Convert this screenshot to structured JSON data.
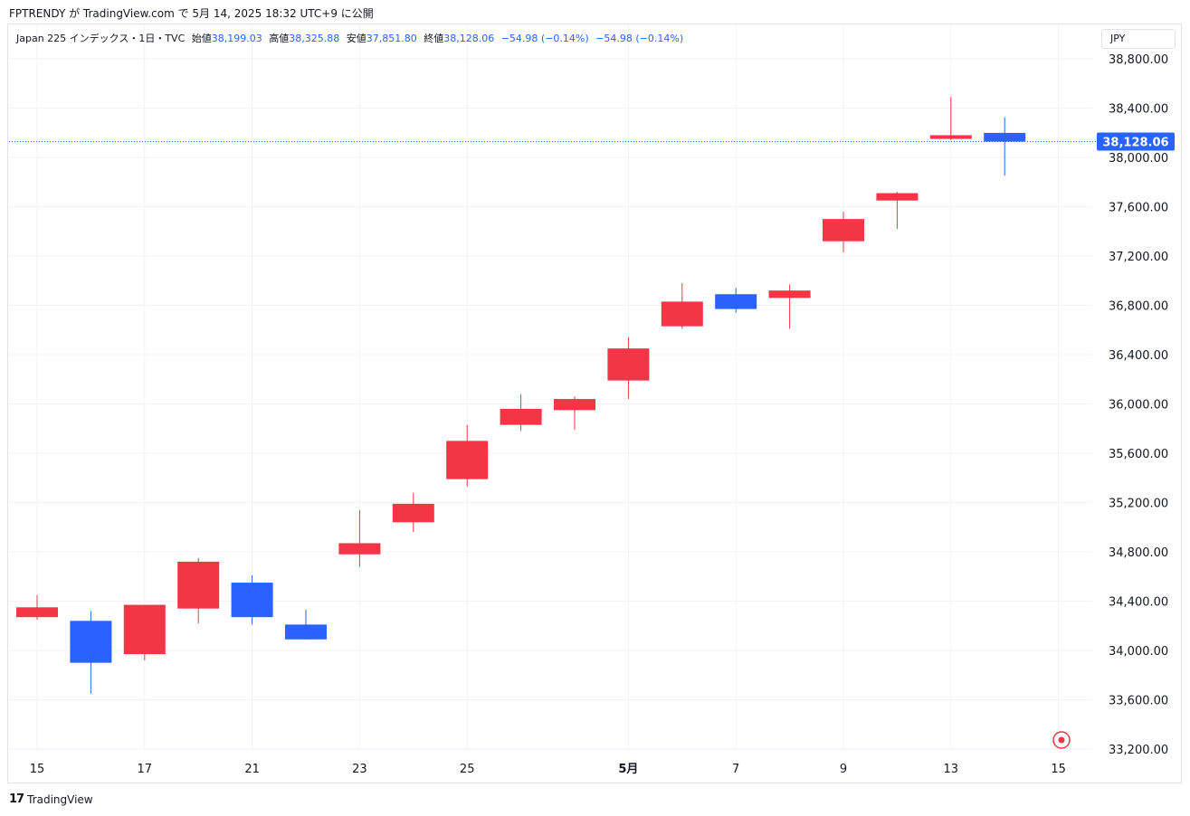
{
  "header": {
    "caption": "FPTRENDY が TradingView.com で 5月 14, 2025 18:32 UTC+9 に公開"
  },
  "legend": {
    "symbol": "Japan 225 インデックス・1日・TVC",
    "open_label": "始値",
    "open": "38,199.03",
    "high_label": "高値",
    "high": "38,325.88",
    "low_label": "安値",
    "low": "37,851.80",
    "close_label": "終値",
    "close": "38,128.06",
    "change1": "−54.98 (−0.14%)",
    "change2": "−54.98 (−0.14%)"
  },
  "currency": "JPY",
  "footer": {
    "brand": "TradingView"
  },
  "colors": {
    "up": "#f23645",
    "down": "#2962ff",
    "grid": "#f0f3fa",
    "price_line": "#2962ff"
  },
  "chart_data": {
    "type": "candlestick",
    "ylim": [
      33200,
      38800
    ],
    "y_ticks": [
      "33,200.00",
      "33,600.00",
      "34,000.00",
      "34,400.00",
      "34,800.00",
      "35,200.00",
      "35,600.00",
      "36,000.00",
      "36,400.00",
      "36,800.00",
      "37,200.00",
      "37,600.00",
      "38,000.00",
      "38,400.00",
      "38,800.00"
    ],
    "x_ticks": [
      {
        "label": "15",
        "index": 0
      },
      {
        "label": "17",
        "index": 2
      },
      {
        "label": "21",
        "index": 4
      },
      {
        "label": "23",
        "index": 6
      },
      {
        "label": "25",
        "index": 8
      },
      {
        "label": "5月",
        "index": 11,
        "bold": true
      },
      {
        "label": "7",
        "index": 13
      },
      {
        "label": "9",
        "index": 15
      },
      {
        "label": "13",
        "index": 17
      },
      {
        "label": "15",
        "index": 19
      }
    ],
    "candles": [
      {
        "o": 34270,
        "h": 34450,
        "l": 34250,
        "c": 34350
      },
      {
        "o": 34240,
        "h": 34320,
        "l": 33650,
        "c": 33900
      },
      {
        "o": 33970,
        "h": 34370,
        "l": 33920,
        "c": 34370
      },
      {
        "o": 34340,
        "h": 34750,
        "l": 34220,
        "c": 34720
      },
      {
        "o": 34550,
        "h": 34610,
        "l": 34210,
        "c": 34270
      },
      {
        "o": 34210,
        "h": 34330,
        "l": 34090,
        "c": 34090
      },
      {
        "o": 34780,
        "h": 35140,
        "l": 34680,
        "c": 34870
      },
      {
        "o": 35040,
        "h": 35280,
        "l": 34960,
        "c": 35190
      },
      {
        "o": 35390,
        "h": 35830,
        "l": 35330,
        "c": 35700
      },
      {
        "o": 35830,
        "h": 36080,
        "l": 35780,
        "c": 35960
      },
      {
        "o": 35950,
        "h": 36060,
        "l": 35790,
        "c": 36040
      },
      {
        "o": 36190,
        "h": 36540,
        "l": 36040,
        "c": 36450
      },
      {
        "o": 36630,
        "h": 36980,
        "l": 36610,
        "c": 36830
      },
      {
        "o": 36890,
        "h": 36940,
        "l": 36740,
        "c": 36770
      },
      {
        "o": 36860,
        "h": 36970,
        "l": 36610,
        "c": 36920
      },
      {
        "o": 37320,
        "h": 37560,
        "l": 37230,
        "c": 37500
      },
      {
        "o": 37650,
        "h": 37720,
        "l": 37420,
        "c": 37710
      },
      {
        "o": 38150,
        "h": 38490,
        "l": 38140,
        "c": 38180
      },
      {
        "o": 38199.03,
        "h": 38325.88,
        "l": 37851.8,
        "c": 38128.06
      }
    ],
    "last_price": 38128.06,
    "last_price_label": "38,128.06"
  }
}
